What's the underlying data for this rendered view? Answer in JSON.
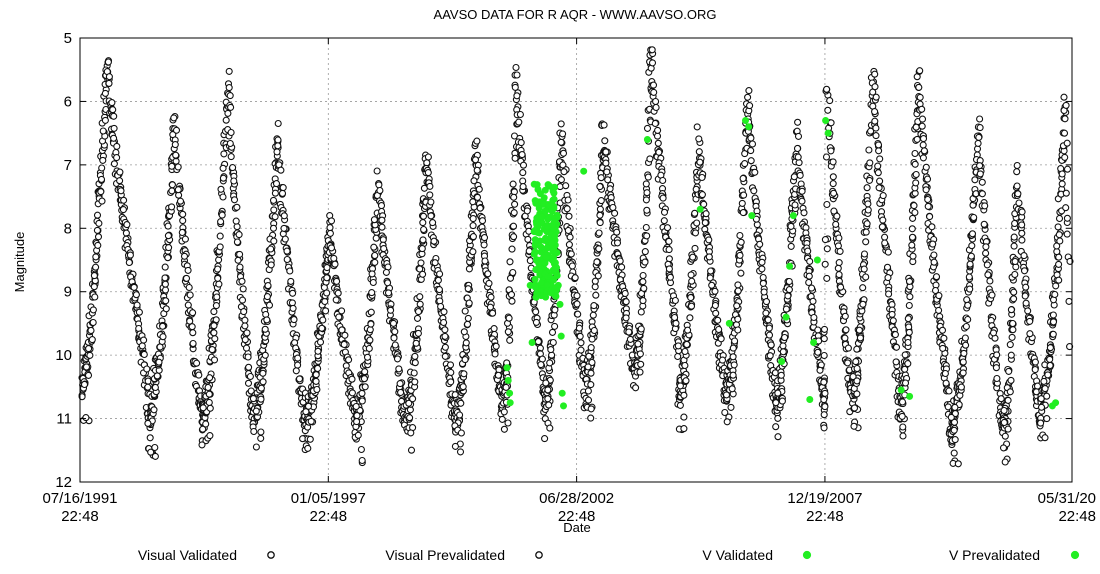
{
  "chart_data": {
    "type": "scatter",
    "title": "AAVSO DATA FOR R AQR - WWW.AAVSO.ORG",
    "xlabel": "Date",
    "ylabel": "Magnitude",
    "x_unit": "date",
    "xlim": [
      "1991-07-16T22:48",
      "2013-05-31T22:48"
    ],
    "ylim": [
      5,
      12
    ],
    "y_inverted": true,
    "grid": true,
    "legend_position": "bottom",
    "x_ticks": [
      {
        "date": "1991-07-16T22:48",
        "line1": "07/16/1991",
        "line2": "22:48"
      },
      {
        "date": "1997-01-05T22:48",
        "line1": "01/05/1997",
        "line2": "22:48"
      },
      {
        "date": "2002-06-28T22:48",
        "line1": "06/28/2002",
        "line2": "22:48"
      },
      {
        "date": "2007-12-19T22:48",
        "line1": "12/19/2007",
        "line2": "22:48"
      },
      {
        "date": "2013-05-31T22:48",
        "line1": "05/31/20",
        "line2": "22:48"
      }
    ],
    "y_ticks": [
      {
        "value": 5,
        "label": "5"
      },
      {
        "value": 6,
        "label": "6"
      },
      {
        "value": 7,
        "label": "7"
      },
      {
        "value": 8,
        "label": "8"
      },
      {
        "value": 9,
        "label": "9"
      },
      {
        "value": 10,
        "label": "10"
      },
      {
        "value": 11,
        "label": "11"
      },
      {
        "value": 12,
        "label": "12"
      }
    ],
    "series": [
      {
        "name": "Visual Validated",
        "color": "#000000",
        "marker": "hollow-circle",
        "cycles": [
          {
            "start": "1991-07-20",
            "max": "1992-02-20",
            "end": "1993-01-10",
            "min_mag": 10.5,
            "max_mag": 5.3
          },
          {
            "start": "1993-01-10",
            "max": "1993-08-20",
            "end": "1994-03-20",
            "min_mag": 11.0,
            "max_mag": 6.3
          },
          {
            "start": "1994-03-20",
            "max": "1994-10-20",
            "end": "1995-05-10",
            "min_mag": 11.0,
            "max_mag": 5.7
          },
          {
            "start": "1995-05-10",
            "max": "1995-11-25",
            "end": "1996-06-20",
            "min_mag": 10.9,
            "max_mag": 6.5
          },
          {
            "start": "1996-06-20",
            "max": "1997-01-20",
            "end": "1997-08-10",
            "min_mag": 11.0,
            "max_mag": 8.0
          },
          {
            "start": "1997-08-10",
            "max": "1998-02-10",
            "end": "1998-09-20",
            "min_mag": 11.1,
            "max_mag": 7.2
          },
          {
            "start": "1998-09-20",
            "max": "1999-03-10",
            "end": "1999-10-20",
            "min_mag": 11.0,
            "max_mag": 6.8
          },
          {
            "start": "1999-10-20",
            "max": "2000-04-10",
            "end": "2000-11-20",
            "min_mag": 11.0,
            "max_mag": 6.8
          },
          {
            "start": "2000-11-20",
            "max": "2001-03-01",
            "end": "2001-10-10",
            "min_mag": 10.6,
            "max_mag": 5.6
          },
          {
            "start": "2001-10-10",
            "max": "2002-02-28",
            "end": "2002-09-15",
            "min_mag": 10.8,
            "max_mag": 6.4
          },
          {
            "start": "2002-09-15",
            "max": "2003-01-30",
            "end": "2003-10-20",
            "min_mag": 10.4,
            "max_mag": 6.4
          },
          {
            "start": "2003-10-20",
            "max": "2004-02-20",
            "end": "2004-10-01",
            "min_mag": 10.0,
            "max_mag": 5.2
          },
          {
            "start": "2004-10-01",
            "max": "2005-03-10",
            "end": "2005-10-10",
            "min_mag": 10.6,
            "max_mag": 6.7
          },
          {
            "start": "2005-10-10",
            "max": "2006-04-10",
            "end": "2006-11-10",
            "min_mag": 10.6,
            "max_mag": 5.9
          },
          {
            "start": "2006-11-10",
            "max": "2007-05-10",
            "end": "2007-12-10",
            "min_mag": 10.7,
            "max_mag": 6.5
          },
          {
            "start": "2007-12-10",
            "max": "2008-01-10",
            "end": "2008-07-20",
            "min_mag": 10.8,
            "max_mag": 5.8
          },
          {
            "start": "2008-07-20",
            "max": "2009-01-10",
            "end": "2009-08-10",
            "min_mag": 10.6,
            "max_mag": 5.5
          },
          {
            "start": "2009-08-10",
            "max": "2010-01-10",
            "end": "2010-09-20",
            "min_mag": 10.8,
            "max_mag": 5.6
          },
          {
            "start": "2010-09-20",
            "max": "2011-05-10",
            "end": "2011-11-20",
            "min_mag": 11.2,
            "max_mag": 6.4
          },
          {
            "start": "2011-11-20",
            "max": "2012-03-20",
            "end": "2012-09-20",
            "min_mag": 11.2,
            "max_mag": 7.1
          },
          {
            "start": "2012-09-20",
            "max": "2013-04-10",
            "end": "2013-05-30",
            "min_mag": 10.8,
            "max_mag": 5.9
          }
        ]
      },
      {
        "name": "Visual Prevalidated",
        "color": "#000000",
        "marker": "hollow-circle",
        "cycles": []
      },
      {
        "name": "V Validated",
        "color": "#22ee22",
        "marker": "filled-circle",
        "points": [
          {
            "x": "2000-12-15",
            "y": 10.2
          },
          {
            "x": "2000-12-25",
            "y": 10.4
          },
          {
            "x": "2001-01-05",
            "y": 10.6
          },
          {
            "x": "2001-01-10",
            "y": 10.75
          },
          {
            "x": "2001-06-20",
            "y": 8.9
          },
          {
            "x": "2001-07-05",
            "y": 9.8
          },
          {
            "x": "2001-08-15",
            "y": 7.6
          },
          {
            "x": "2001-08-25",
            "y": 7.9
          },
          {
            "x": "2001-09-05",
            "y": 8.2
          },
          {
            "x": "2001-09-15",
            "y": 8.5
          },
          {
            "x": "2001-10-01",
            "y": 8.8
          },
          {
            "x": "2001-10-20",
            "y": 7.4
          },
          {
            "x": "2001-11-10",
            "y": 7.7
          },
          {
            "x": "2001-12-01",
            "y": 8.0
          },
          {
            "x": "2001-12-20",
            "y": 8.3
          },
          {
            "x": "2002-01-10",
            "y": 8.6
          },
          {
            "x": "2002-02-01",
            "y": 8.9
          },
          {
            "x": "2002-02-15",
            "y": 9.2
          },
          {
            "x": "2002-02-25",
            "y": 9.7
          },
          {
            "x": "2002-03-05",
            "y": 10.6
          },
          {
            "x": "2002-03-15",
            "y": 10.8
          },
          {
            "x": "2002-08-25",
            "y": 7.1
          },
          {
            "x": "2004-01-20",
            "y": 6.6
          },
          {
            "x": "2005-03-20",
            "y": 7.7
          },
          {
            "x": "2005-11-10",
            "y": 9.5
          },
          {
            "x": "2006-03-20",
            "y": 6.3
          },
          {
            "x": "2006-04-15",
            "y": 6.4
          },
          {
            "x": "2006-05-10",
            "y": 7.8
          },
          {
            "x": "2007-01-05",
            "y": 10.1
          },
          {
            "x": "2007-02-10",
            "y": 9.4
          },
          {
            "x": "2007-03-10",
            "y": 8.6
          },
          {
            "x": "2007-04-10",
            "y": 7.8
          },
          {
            "x": "2007-08-20",
            "y": 10.7
          },
          {
            "x": "2007-09-20",
            "y": 9.8
          },
          {
            "x": "2007-10-20",
            "y": 8.5
          },
          {
            "x": "2007-12-25",
            "y": 6.3
          },
          {
            "x": "2008-01-15",
            "y": 6.5
          },
          {
            "x": "2009-08-25",
            "y": 10.55
          },
          {
            "x": "2009-11-01",
            "y": 10.65
          },
          {
            "x": "2012-12-25",
            "y": 10.8
          },
          {
            "x": "2013-01-20",
            "y": 10.75
          }
        ]
      },
      {
        "name": "V Prevalidated",
        "color": "#22ee22",
        "marker": "filled-circle",
        "points": []
      }
    ],
    "v_cloud": {
      "start": "2001-07-20",
      "end": "2002-01-25",
      "mag_min": 7.3,
      "mag_max": 9.1,
      "count": 170
    }
  }
}
